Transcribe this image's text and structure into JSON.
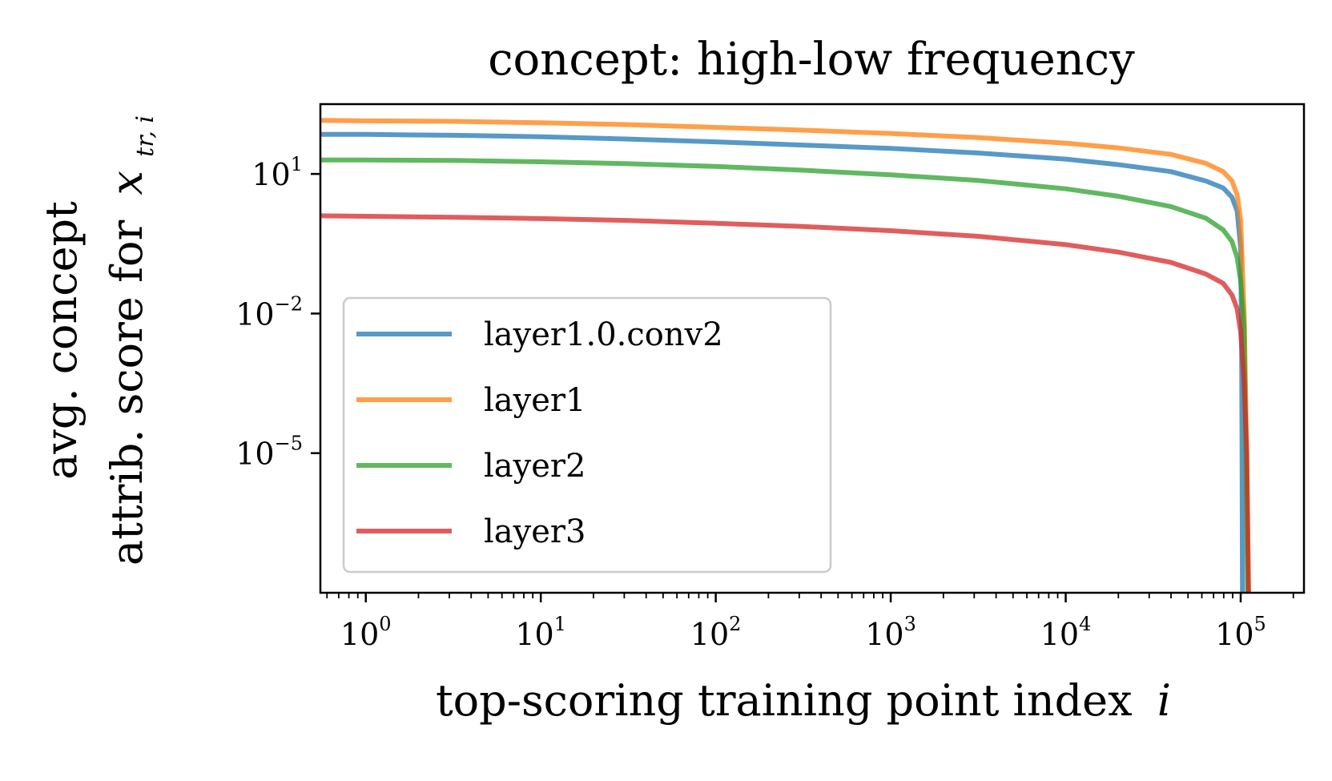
{
  "chart_data": {
    "type": "line",
    "title": "concept: high-low frequency",
    "xlabel": {
      "text": "top-scoring training point index",
      "var": "i"
    },
    "ylabel": {
      "line1": "avg. concept",
      "line2": "attrib. score for",
      "var": "x",
      "var_sub": "tr, i"
    },
    "xscale": "log",
    "yscale": "log",
    "xlim": [
      0.55,
      230000
    ],
    "ylim_exponent": [
      -8.0,
      2.5
    ],
    "x_ticks": [
      {
        "base": "10",
        "exp": "0"
      },
      {
        "base": "10",
        "exp": "1"
      },
      {
        "base": "10",
        "exp": "2"
      },
      {
        "base": "10",
        "exp": "3"
      },
      {
        "base": "10",
        "exp": "4"
      },
      {
        "base": "10",
        "exp": "5"
      }
    ],
    "y_ticks": [
      {
        "base": "10",
        "exp": "1",
        "value_exponent": 1
      },
      {
        "base": "10",
        "exp": "−2",
        "value_exponent": -2
      },
      {
        "base": "10",
        "exp": "−5",
        "value_exponent": -5
      }
    ],
    "legend": {
      "position": "lower-left",
      "entries": [
        "layer1.0.conv2",
        "layer1",
        "layer2",
        "layer3"
      ]
    },
    "series": [
      {
        "name": "layer1.0.conv2",
        "color": "#1f77b4",
        "points_log10": [
          [
            -0.26,
            1.85
          ],
          [
            0,
            1.85
          ],
          [
            0.5,
            1.83
          ],
          [
            1,
            1.8
          ],
          [
            1.5,
            1.75
          ],
          [
            2,
            1.69
          ],
          [
            2.5,
            1.62
          ],
          [
            3,
            1.55
          ],
          [
            3.5,
            1.45
          ],
          [
            4,
            1.32
          ],
          [
            4.3,
            1.2
          ],
          [
            4.6,
            1.05
          ],
          [
            4.8,
            0.85
          ],
          [
            4.9,
            0.7
          ],
          [
            4.95,
            0.5
          ],
          [
            4.98,
            0.2
          ],
          [
            5.0,
            -0.6
          ],
          [
            5.005,
            -2.5
          ],
          [
            5.008,
            -5.0
          ],
          [
            5.01,
            -8.0
          ]
        ]
      },
      {
        "name": "layer1",
        "color": "#ff7f0e",
        "points_log10": [
          [
            -0.26,
            2.15
          ],
          [
            0,
            2.14
          ],
          [
            0.5,
            2.13
          ],
          [
            1,
            2.1
          ],
          [
            1.5,
            2.06
          ],
          [
            2,
            2.0
          ],
          [
            2.5,
            1.94
          ],
          [
            3,
            1.87
          ],
          [
            3.5,
            1.78
          ],
          [
            4,
            1.66
          ],
          [
            4.3,
            1.56
          ],
          [
            4.6,
            1.42
          ],
          [
            4.8,
            1.23
          ],
          [
            4.9,
            1.05
          ],
          [
            4.95,
            0.85
          ],
          [
            4.98,
            0.55
          ],
          [
            5.0,
            0.0
          ],
          [
            5.02,
            -2.0
          ],
          [
            5.035,
            -5.0
          ],
          [
            5.045,
            -8.0
          ]
        ]
      },
      {
        "name": "layer2",
        "color": "#2ca02c",
        "points_log10": [
          [
            -0.26,
            1.3
          ],
          [
            0,
            1.3
          ],
          [
            0.5,
            1.29
          ],
          [
            1,
            1.26
          ],
          [
            1.5,
            1.22
          ],
          [
            2,
            1.16
          ],
          [
            2.5,
            1.08
          ],
          [
            3,
            0.98
          ],
          [
            3.5,
            0.86
          ],
          [
            4,
            0.68
          ],
          [
            4.3,
            0.52
          ],
          [
            4.6,
            0.3
          ],
          [
            4.8,
            0.05
          ],
          [
            4.9,
            -0.2
          ],
          [
            4.95,
            -0.45
          ],
          [
            4.98,
            -0.8
          ],
          [
            5.0,
            -1.3
          ],
          [
            5.02,
            -2.3
          ],
          [
            5.03,
            -5.0
          ],
          [
            5.04,
            -8.0
          ]
        ]
      },
      {
        "name": "layer3",
        "color": "#d62728",
        "points_log10": [
          [
            -0.26,
            0.1
          ],
          [
            0,
            0.09
          ],
          [
            0.5,
            0.07
          ],
          [
            1,
            0.04
          ],
          [
            1.5,
            0.0
          ],
          [
            2,
            -0.06
          ],
          [
            2.5,
            -0.13
          ],
          [
            3,
            -0.22
          ],
          [
            3.5,
            -0.34
          ],
          [
            4,
            -0.52
          ],
          [
            4.3,
            -0.68
          ],
          [
            4.6,
            -0.9
          ],
          [
            4.8,
            -1.15
          ],
          [
            4.9,
            -1.35
          ],
          [
            4.95,
            -1.6
          ],
          [
            4.98,
            -1.9
          ],
          [
            5.0,
            -2.4
          ],
          [
            5.02,
            -3.5
          ],
          [
            5.035,
            -5.0
          ],
          [
            5.045,
            -8.0
          ]
        ]
      }
    ]
  }
}
